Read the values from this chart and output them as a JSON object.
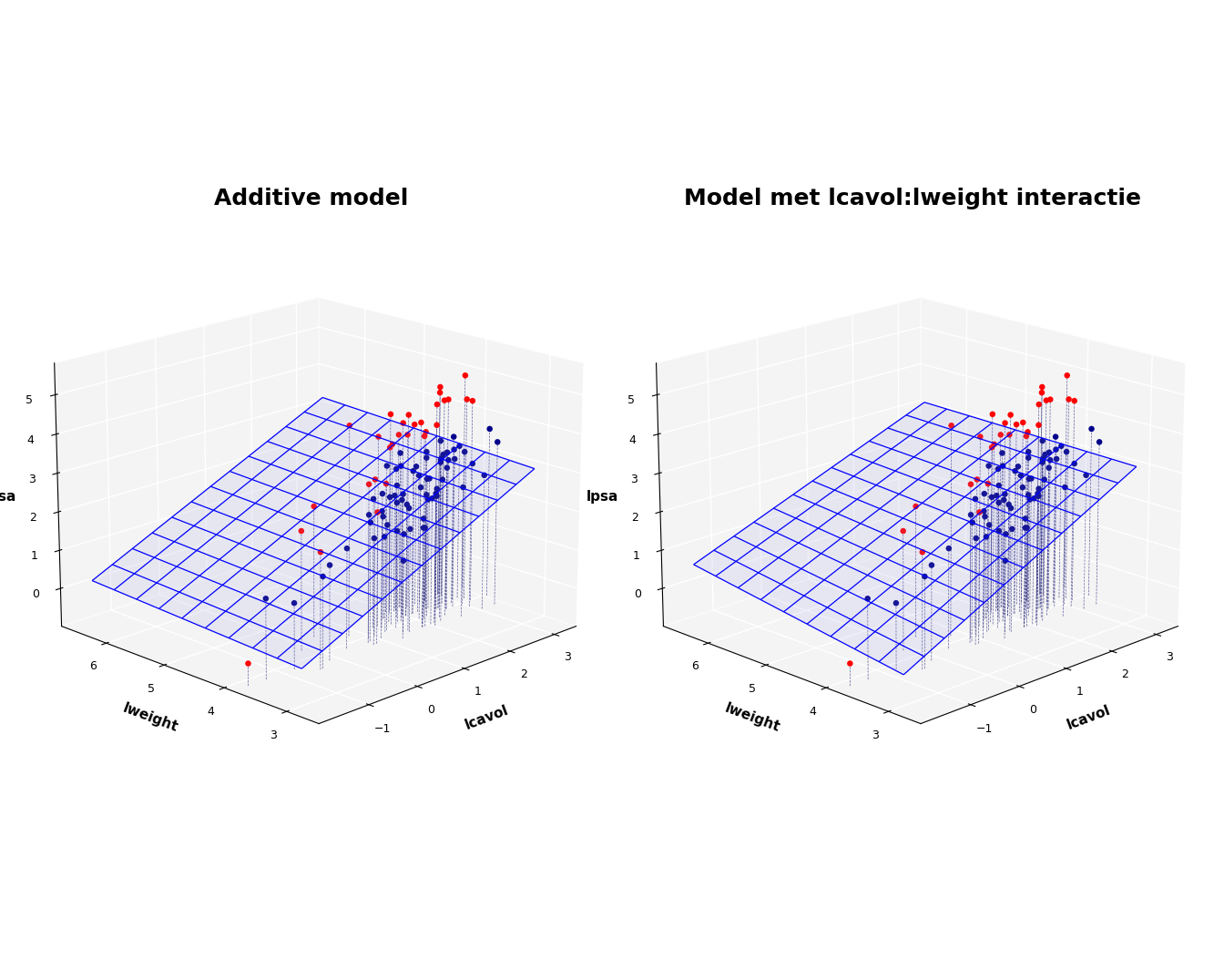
{
  "title_left": "Additive model",
  "title_right": "Model met lcavol:lweight interactie",
  "xlabel": "lcavol",
  "ylabel": "lweight",
  "zlabel": "lpsa",
  "xlim": [
    -2.0,
    3.5
  ],
  "ylim": [
    2.5,
    6.8
  ],
  "zlim": [
    -1.0,
    5.8
  ],
  "xticks": [
    -1,
    0,
    1,
    2,
    3
  ],
  "yticks": [
    3,
    4,
    5,
    6
  ],
  "zticks": [
    0,
    1,
    2,
    3,
    4,
    5
  ],
  "point_color_svi0": "#00008B",
  "point_color_svi1": "#FF0000",
  "wire_color": "#0000FF",
  "background_color": "#FFFFFF",
  "pane_color": "#E8E8E8",
  "title_fontsize": 18,
  "axis_label_fontsize": 12,
  "elev": 18,
  "azim": 225,
  "lcavol": [
    -1.3470737,
    -0.7765289,
    -0.4620401,
    -0.1625189,
    0.3677858,
    0.7654678,
    0.8329091,
    0.9202697,
    1.0470175,
    1.2667702,
    1.2809338,
    1.3481503,
    1.3785012,
    1.462328,
    1.5262285,
    1.5362563,
    1.568665,
    1.65822,
    1.6893803,
    1.7812548,
    1.8249793,
    1.8694414,
    1.883899,
    1.9100425,
    1.9206577,
    1.9459101,
    1.9951709,
    2.0082843,
    2.0082843,
    2.0082843,
    2.014903,
    2.0618641,
    2.0904305,
    2.1271622,
    2.1373816,
    2.140002,
    2.2137519,
    2.2300144,
    2.2300144,
    2.2300144,
    2.2682422,
    2.3227878,
    2.4510051,
    2.4510051,
    2.4849066,
    2.501276,
    2.5494475,
    2.5902672,
    2.5902672,
    2.6240927,
    2.6742456,
    2.7112633,
    2.7112633,
    2.7472707,
    2.8135846,
    2.890411,
    2.9333723,
    3.0,
    3.0445224,
    3.0624617,
    3.0853513,
    3.1094379,
    3.16485,
    3.2188758,
    3.3499279,
    3.5607767,
    -0.5108256,
    0.7654678,
    0.8329091,
    1.0470175,
    1.2809338,
    1.3785012,
    1.58531,
    1.6289417,
    1.7227666,
    1.8249793,
    1.9100425,
    1.9952698,
    2.0082843,
    2.0618641,
    2.159493,
    2.2137519,
    2.3070604,
    2.4849066,
    2.5902672,
    2.6568979,
    2.8135846,
    2.9333723,
    3.0,
    3.0853513,
    3.2188758,
    3.5607767,
    -1.7047481,
    -0.1625189,
    0.3677858,
    0.7654678
  ],
  "lweight": [
    3.8501476,
    3.8501476,
    3.6375862,
    3.7612001,
    3.8949898,
    3.7612001,
    3.8722684,
    3.9633162,
    3.8501476,
    3.6667172,
    4.1648768,
    3.988984,
    4.0943446,
    3.8066625,
    3.9703087,
    3.7612001,
    3.8066625,
    4.2904594,
    4.2904594,
    4.0775374,
    3.7612001,
    4.2195078,
    3.7612001,
    4.3694479,
    4.4308168,
    3.8501476,
    4.2195078,
    3.6888795,
    4.1648768,
    3.7612001,
    4.3694479,
    4.3694479,
    3.7612001,
    4.4308168,
    3.9633162,
    4.1648768,
    4.4308168,
    4.4308168,
    3.988984,
    3.7612001,
    4.1648768,
    3.8501476,
    3.8501476,
    4.1648768,
    4.3694479,
    4.1648768,
    4.0775374,
    3.6888795,
    4.3694479,
    4.0775374,
    3.988984,
    4.3694479,
    4.3694479,
    4.1648768,
    3.988984,
    4.1648768,
    4.0943446,
    3.9633162,
    4.1648768,
    3.6888795,
    4.3694479,
    4.4308168,
    4.1648768,
    3.988984,
    3.6888795,
    3.9633162,
    3.6375862,
    3.8501476,
    3.7612001,
    3.9633162,
    3.9633162,
    4.1648768,
    4.0943446,
    4.1648768,
    4.0943446,
    3.7612001,
    4.1648768,
    4.4308168,
    4.1648768,
    3.988984,
    4.1648768,
    3.8501476,
    4.3694479,
    4.2195078,
    4.0775374,
    3.988984,
    4.1648768,
    4.3694479,
    3.8501476,
    4.4308168,
    4.0943446,
    4.3694479,
    3.8501476,
    4.2195078,
    4.4308168,
    4.1648768
  ],
  "lpsa": [
    1.0470175,
    0.6931472,
    1.3470737,
    1.4470743,
    1.5892352,
    1.7578579,
    2.0794415,
    2.1972246,
    2.2975726,
    1.0296194,
    2.3692688,
    1.7578579,
    2.5014948,
    1.5686651,
    2.2737745,
    1.6931472,
    2.1972246,
    1.7047481,
    1.1631508,
    2.1972246,
    1.6094379,
    1.2809338,
    2.4423471,
    2.0794415,
    2.8622009,
    1.7578579,
    2.1972246,
    2.3978953,
    1.9459101,
    2.3025851,
    2.0794415,
    2.3267766,
    2.3978953,
    2.7047481,
    1.3862944,
    2.7725887,
    3.0910425,
    2.7472709,
    2.0794415,
    2.7080502,
    2.6090613,
    3.1780538,
    2.8903718,
    2.4510051,
    2.6667228,
    2.4423471,
    2.1972246,
    2.4094345,
    2.0794415,
    2.8647855,
    2.9444389,
    2.9698286,
    2.8134107,
    2.8461938,
    2.9228539,
    2.985682,
    3.4111513,
    3.0543056,
    3.005206,
    2.5463519,
    2.7645282,
    3.0910425,
    3.0543056,
    2.6532006,
    3.3105448,
    3.4560852,
    1.9810015,
    3.0910425,
    2.3978953,
    3.0543056,
    2.8603607,
    3.9318256,
    3.6963283,
    3.5676178,
    3.8916296,
    3.9703087,
    4.0943446,
    4.1743873,
    3.7612001,
    4.1341853,
    3.9703087,
    4.0775374,
    4.0775374,
    3.6375862,
    4.6821312,
    4.5217886,
    4.3694479,
    4.1341853,
    4.4308168,
    4.5108595,
    4.2904594,
    4.6821312,
    -0.4307829,
    2.0794415,
    2.3978953,
    4.4308168
  ],
  "svi": [
    0,
    0,
    0,
    0,
    0,
    0,
    0,
    0,
    0,
    0,
    0,
    0,
    0,
    0,
    0,
    0,
    0,
    0,
    0,
    0,
    0,
    0,
    0,
    0,
    0,
    0,
    0,
    0,
    0,
    0,
    0,
    0,
    0,
    0,
    0,
    0,
    0,
    0,
    0,
    0,
    0,
    0,
    0,
    0,
    0,
    0,
    0,
    0,
    0,
    0,
    0,
    0,
    0,
    0,
    0,
    0,
    0,
    0,
    0,
    0,
    0,
    0,
    0,
    0,
    0,
    0,
    1,
    1,
    1,
    1,
    1,
    1,
    1,
    1,
    1,
    1,
    1,
    1,
    1,
    1,
    1,
    1,
    1,
    1,
    1,
    1,
    1,
    1,
    1,
    1,
    1,
    1,
    1,
    1,
    1,
    1
  ]
}
